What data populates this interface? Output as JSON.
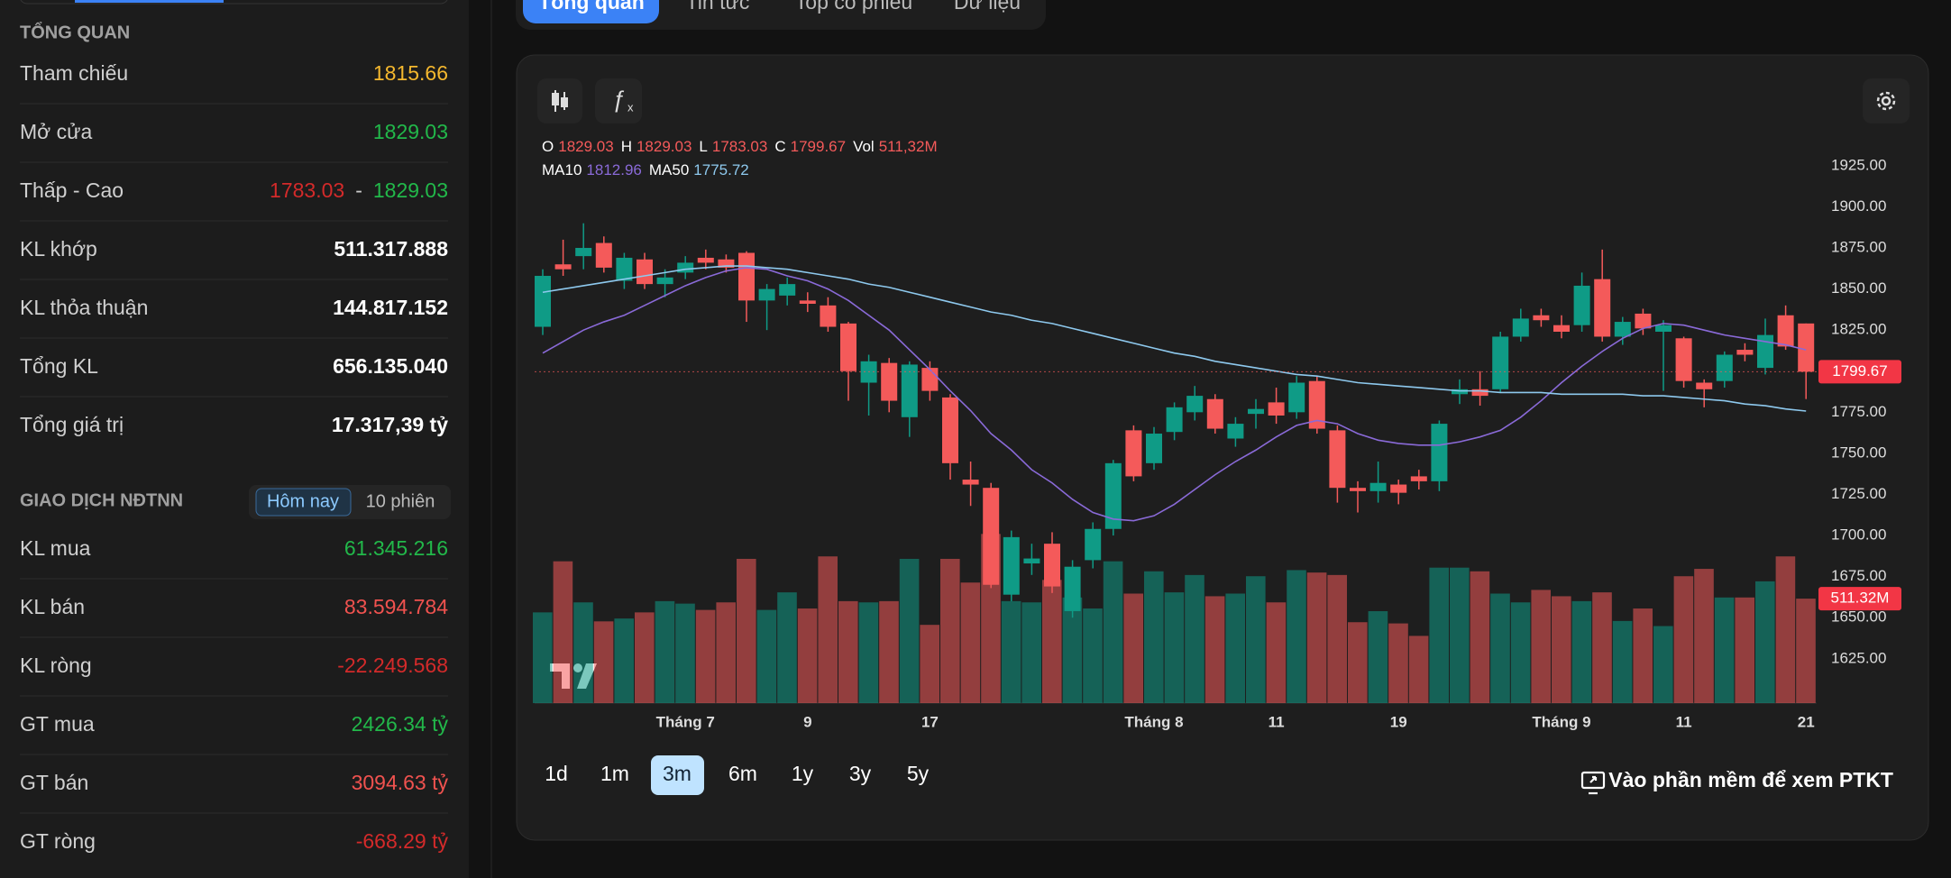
{
  "sidebar": {
    "overview_title": "TỔNG QUAN",
    "overview": [
      {
        "label": "Tham chiếu",
        "value": "1815.66"
      },
      {
        "label": "Mở cửa",
        "value": "1829.03"
      },
      {
        "label": "Thấp - Cao",
        "low": "1783.03",
        "separator": "-",
        "high": "1829.03"
      },
      {
        "label": "KL khớp",
        "value": "511.317.888"
      },
      {
        "label": "KL thỏa thuận",
        "value": "144.817.152"
      },
      {
        "label": "Tổng KL",
        "value": "656.135.040"
      },
      {
        "label": "Tổng giá trị",
        "value": "17.317,39 tỷ"
      }
    ],
    "foreign_title": "GIAO DỊCH NĐTNN",
    "foreign_toggle": [
      "Hôm nay",
      "10 phiên"
    ],
    "foreign": [
      {
        "label": "KL mua",
        "value": "61.345.216"
      },
      {
        "label": "KL bán",
        "value": "83.594.784"
      },
      {
        "label": "KL ròng",
        "value": "-22.249.568"
      },
      {
        "label": "GT mua",
        "value": "2426.34 tỷ"
      },
      {
        "label": "GT bán",
        "value": "3094.63 tỷ"
      },
      {
        "label": "GT ròng",
        "value": "-668.29 tỷ"
      }
    ]
  },
  "tabs": [
    "Tổng quan",
    "Tin tức",
    "Top cổ phiếu",
    "Dữ liệu"
  ],
  "ranges": [
    "1d",
    "1m",
    "3m",
    "6m",
    "1y",
    "3y",
    "5y"
  ],
  "cta": "Vào phần mềm để xem PTKT",
  "chart_data": {
    "type": "candlestick",
    "x": [
      null,
      null,
      null,
      null,
      null,
      null,
      null,
      "Tháng 7",
      null,
      null,
      null,
      null,
      null,
      "9",
      null,
      null,
      null,
      null,
      null,
      "17",
      null,
      null,
      null,
      null,
      null,
      null,
      null,
      null,
      null,
      null,
      "Tháng 8",
      null,
      null,
      null,
      null,
      null,
      "11",
      null,
      null,
      null,
      null,
      null,
      "19",
      null,
      null,
      null,
      null,
      null,
      null,
      null,
      "Tháng 9",
      null,
      null,
      null,
      null,
      null,
      "11",
      null,
      null,
      null,
      null,
      null,
      "21"
    ],
    "open": [
      1827,
      1865,
      1870,
      1878,
      1855,
      1868,
      1853,
      1860,
      1869,
      1868,
      1872,
      1843,
      1846,
      1843,
      1840,
      1829,
      1793,
      1805,
      1772,
      1802,
      1784,
      1734,
      1729,
      1664,
      1683,
      1695,
      1654,
      1685,
      1704,
      1764,
      1744,
      1763,
      1775,
      1783,
      1759,
      1774,
      1781,
      1775,
      1794,
      1764,
      1729,
      1727,
      1731,
      1736,
      1733,
      1786,
      1789,
      1789,
      1821,
      1834,
      1828,
      1828,
      1856,
      1821,
      1835,
      1824,
      1820,
      1793,
      1794,
      1813,
      1802,
      1834,
      1829.03
    ],
    "high": [
      1862,
      1880,
      1890,
      1882,
      1872,
      1872,
      1862,
      1870,
      1874,
      1871,
      1873,
      1853,
      1857,
      1848,
      1845,
      1830,
      1810,
      1808,
      1806,
      1806,
      1786,
      1745,
      1732,
      1703,
      1695,
      1702,
      1685,
      1708,
      1746,
      1767,
      1766,
      1781,
      1791,
      1786,
      1772,
      1783,
      1790,
      1797,
      1797,
      1767,
      1733,
      1745,
      1734,
      1740,
      1770,
      1795,
      1800,
      1824,
      1838,
      1838,
      1834,
      1860,
      1874,
      1833,
      1838,
      1831,
      1821,
      1795,
      1812,
      1817,
      1832,
      1840,
      1829.03
    ],
    "low": [
      1822,
      1858,
      1862,
      1860,
      1850,
      1850,
      1845,
      1856,
      1862,
      1860,
      1830,
      1825,
      1840,
      1836,
      1824,
      1782,
      1773,
      1775,
      1760,
      1782,
      1734,
      1718,
      1668,
      1660,
      1676,
      1665,
      1650,
      1680,
      1700,
      1733,
      1740,
      1758,
      1770,
      1762,
      1754,
      1765,
      1768,
      1771,
      1762,
      1720,
      1714,
      1720,
      1719,
      1728,
      1727,
      1780,
      1779,
      1787,
      1818,
      1827,
      1820,
      1824,
      1818,
      1816,
      1822,
      1788,
      1790,
      1778,
      1790,
      1806,
      1798,
      1813,
      1783.03
    ],
    "close": [
      1858,
      1862,
      1875,
      1863,
      1869,
      1853,
      1857,
      1866,
      1866,
      1863,
      1843,
      1850,
      1853,
      1841,
      1827,
      1800,
      1806,
      1782,
      1804,
      1788,
      1744,
      1731,
      1670,
      1699,
      1686,
      1669,
      1681,
      1704,
      1744,
      1736,
      1762,
      1778,
      1785,
      1765,
      1768,
      1777,
      1773,
      1793,
      1765,
      1729,
      1727,
      1732,
      1726,
      1733,
      1768,
      1789,
      1785,
      1821,
      1832,
      1831,
      1824,
      1852,
      1821,
      1830,
      1826,
      1828,
      1794,
      1789,
      1810,
      1810,
      1822,
      1815,
      1799.67
    ],
    "volume": [
      444,
      694,
      493,
      400,
      414,
      444,
      499,
      487,
      456,
      493,
      706,
      456,
      542,
      463,
      718,
      499,
      493,
      499,
      706,
      383,
      706,
      590,
      828,
      499,
      493,
      603,
      517,
      463,
      694,
      536,
      645,
      542,
      627,
      523,
      536,
      621,
      493,
      651,
      639,
      627,
      396,
      450,
      390,
      329,
      663,
      663,
      645,
      536,
      493,
      554,
      523,
      499,
      542,
      402,
      463,
      377,
      621,
      657,
      517,
      517,
      596,
      718,
      511.32
    ],
    "volume_legend_label": "511,32M",
    "volume_tag_label": "511.32M",
    "ohlc_keys": [
      "O",
      "H",
      "L",
      "C",
      "Vol"
    ],
    "series": [
      {
        "name": "MA10",
        "color": "#8a6ad8",
        "values": [
          1811,
          1818,
          1825,
          1830,
          1834,
          1840,
          1846,
          1852,
          1857,
          1861,
          1863,
          1862,
          1858,
          1855,
          1850,
          1843,
          1834,
          1825,
          1813,
          1801,
          1788,
          1776,
          1762,
          1752,
          1740,
          1732,
          1722,
          1714,
          1710,
          1709,
          1712,
          1719,
          1728,
          1737,
          1745,
          1752,
          1760,
          1767,
          1770,
          1768,
          1762,
          1758,
          1756,
          1755,
          1755,
          1757,
          1760,
          1764,
          1772,
          1782,
          1793,
          1803,
          1812,
          1820,
          1826,
          1829,
          1828,
          1825,
          1822,
          1820,
          1818,
          1816,
          1812.96
        ]
      },
      {
        "name": "MA50",
        "color": "#8ec9ee",
        "values": [
          1848,
          1850,
          1852,
          1854,
          1856,
          1858,
          1860,
          1862,
          1863,
          1864,
          1864,
          1863,
          1862,
          1860,
          1858,
          1856,
          1853,
          1851,
          1848,
          1845,
          1842,
          1839,
          1836,
          1834,
          1831,
          1829,
          1826,
          1823,
          1820,
          1817,
          1814,
          1811,
          1809,
          1806,
          1804,
          1802,
          1800,
          1798,
          1797,
          1795,
          1793,
          1792,
          1791,
          1790,
          1789,
          1788,
          1788,
          1787,
          1787,
          1787,
          1786,
          1786,
          1786,
          1786,
          1785,
          1785,
          1784,
          1783,
          1782,
          1780,
          1779,
          1777,
          1775.72
        ]
      }
    ],
    "up_color": "#0f9b86",
    "down_color": "#f45a5a",
    "ylim": [
      1598,
      1954
    ],
    "yticks": [
      {
        "value": 1625,
        "label": "1625.00"
      },
      {
        "value": 1650,
        "label": "1650.00"
      },
      {
        "value": 1675,
        "label": "1675.00"
      },
      {
        "value": 1700,
        "label": "1700.00"
      },
      {
        "value": 1725,
        "label": "1725.00"
      },
      {
        "value": 1750,
        "label": "1750.00"
      },
      {
        "value": 1775,
        "label": "1775.00"
      },
      {
        "value": 1800,
        "label": "1800.00"
      },
      {
        "value": 1825,
        "label": "1825.00"
      },
      {
        "value": 1850,
        "label": "1850.00"
      },
      {
        "value": 1875,
        "label": "1875.00"
      },
      {
        "value": 1900,
        "label": "1900.00"
      },
      {
        "value": 1925,
        "label": "1925.00"
      }
    ],
    "y2lim": [
      0,
      2863
    ],
    "grid": false
  }
}
